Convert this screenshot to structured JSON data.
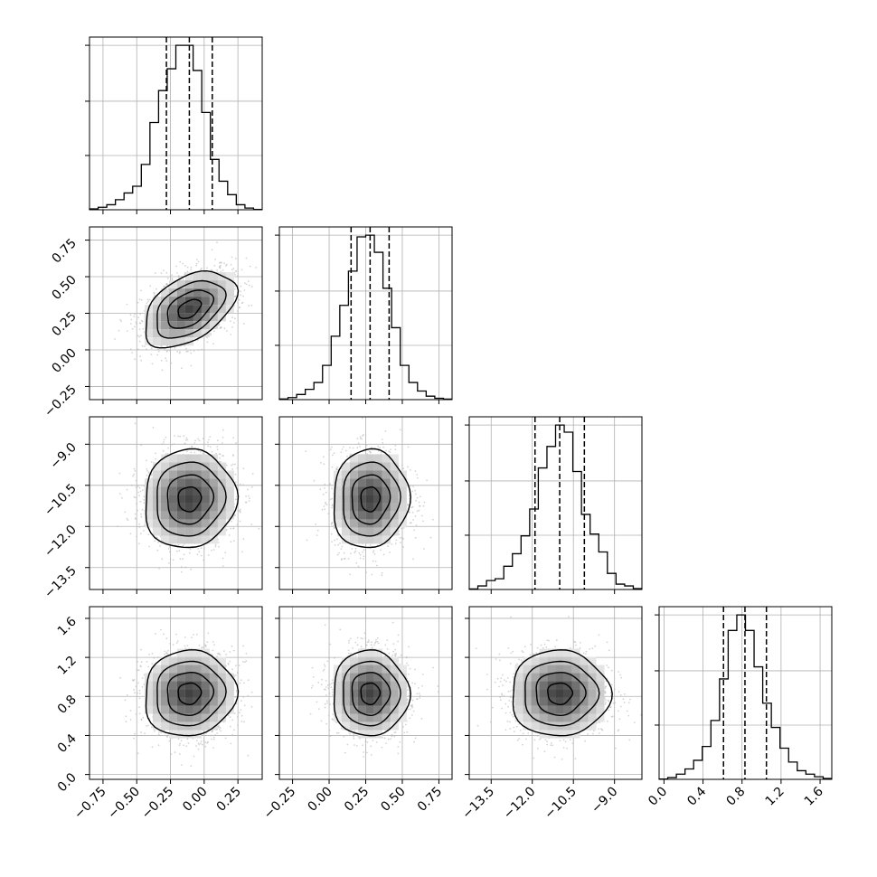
{
  "chart_data": {
    "type": "corner",
    "title": "",
    "n_params": 4,
    "params": [
      {
        "label": "",
        "median": -0.11,
        "q16": -0.28,
        "q84": 0.06,
        "range": [
          -0.85,
          0.43
        ],
        "ticks": [
          -0.75,
          -0.5,
          -0.25,
          0.0,
          0.25
        ],
        "tick_labels": [
          "−0.75",
          "−0.50",
          "−0.25",
          "0.00",
          "0.25"
        ],
        "hist_edges_start": -0.85,
        "hist_counts": [
          0.005,
          0.015,
          0.03,
          0.06,
          0.1,
          0.14,
          0.27,
          0.52,
          0.71,
          0.84,
          0.98,
          0.98,
          0.83,
          0.58,
          0.3,
          0.17,
          0.09,
          0.03,
          0.01,
          0.002
        ]
      },
      {
        "label": "",
        "median": 0.28,
        "q16": 0.15,
        "q84": 0.41,
        "range": [
          -0.34,
          0.84
        ],
        "ticks": [
          -0.25,
          0.0,
          0.25,
          0.5,
          0.75
        ],
        "tick_labels": [
          "−0.25",
          "0.00",
          "0.25",
          "0.50",
          "0.75"
        ],
        "hist_edges_start": -0.34,
        "hist_counts": [
          0.004,
          0.012,
          0.03,
          0.06,
          0.1,
          0.2,
          0.37,
          0.55,
          0.75,
          0.95,
          0.96,
          0.86,
          0.65,
          0.42,
          0.2,
          0.1,
          0.05,
          0.02,
          0.008,
          0.003
        ]
      },
      {
        "label": "",
        "median": -11.0,
        "q16": -11.9,
        "q84": -10.1,
        "range": [
          -14.3,
          -8.0
        ],
        "ticks": [
          -13.5,
          -12.0,
          -10.5,
          -9.0
        ],
        "tick_labels": [
          "−13.5",
          "−12.0",
          "−10.5",
          "−9.0"
        ],
        "hist_edges_start": -14.3,
        "hist_counts": [
          0.003,
          0.02,
          0.05,
          0.06,
          0.13,
          0.2,
          0.3,
          0.45,
          0.68,
          0.8,
          0.92,
          0.88,
          0.66,
          0.42,
          0.31,
          0.21,
          0.09,
          0.03,
          0.02,
          0.005
        ]
      },
      {
        "label": "",
        "median": 0.83,
        "q16": 0.61,
        "q84": 1.05,
        "range": [
          -0.05,
          1.72
        ],
        "ticks": [
          0.0,
          0.4,
          0.8,
          1.2,
          1.6
        ],
        "tick_labels": [
          "0.0",
          "0.4",
          "0.8",
          "1.2",
          "1.6"
        ],
        "hist_edges_start": -0.05,
        "hist_counts": [
          0.002,
          0.01,
          0.03,
          0.06,
          0.11,
          0.19,
          0.34,
          0.58,
          0.86,
          0.95,
          0.86,
          0.65,
          0.44,
          0.3,
          0.18,
          0.1,
          0.05,
          0.03,
          0.015,
          0.005
        ]
      }
    ],
    "correlations": [
      [
        1.0,
        0.45,
        0.05,
        0.05
      ],
      [
        0.45,
        1.0,
        0.05,
        0.0
      ],
      [
        0.05,
        0.05,
        1.0,
        0.0
      ],
      [
        0.05,
        0.0,
        0.0,
        1.0
      ]
    ],
    "contour_levels_sigma": [
      0.5,
      1.0,
      1.5,
      2.0
    ],
    "grid": true,
    "quantile_lines": "dashed",
    "colors": {
      "hist": "#000000",
      "grid": "#b0b0b0",
      "points": "#b8b8b8",
      "contour": "#000000"
    }
  }
}
